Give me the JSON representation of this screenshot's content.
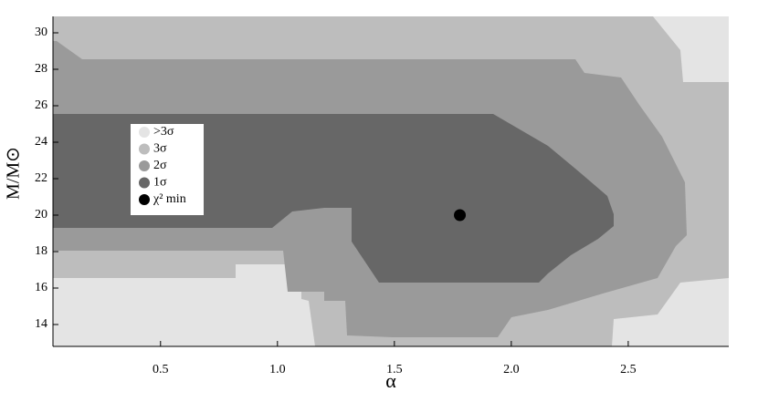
{
  "chart_data": {
    "type": "contour",
    "xlabel": "α",
    "ylabel": "M/M⊙",
    "xlim": [
      0.04,
      2.93
    ],
    "ylim": [
      12.8,
      30.9
    ],
    "xticks": [
      0.5,
      {
        "value": 1.0,
        "label": "1.0"
      },
      1.5,
      {
        "value": 2.0,
        "label": "2.0"
      },
      2.5
    ],
    "yticks": [
      14,
      16,
      18,
      20,
      22,
      24,
      26,
      28,
      30
    ],
    "series": [
      {
        "name": ">3σ",
        "color": "#e4e4e4"
      },
      {
        "name": "3σ",
        "color": "#bdbdbd"
      },
      {
        "name": "2σ",
        "color": "#9a9a9a"
      },
      {
        "name": "1σ",
        "color": "#676767"
      }
    ],
    "point": {
      "name": "χ² min",
      "color": "#000000",
      "x": 1.78,
      "y": 20.0
    }
  }
}
